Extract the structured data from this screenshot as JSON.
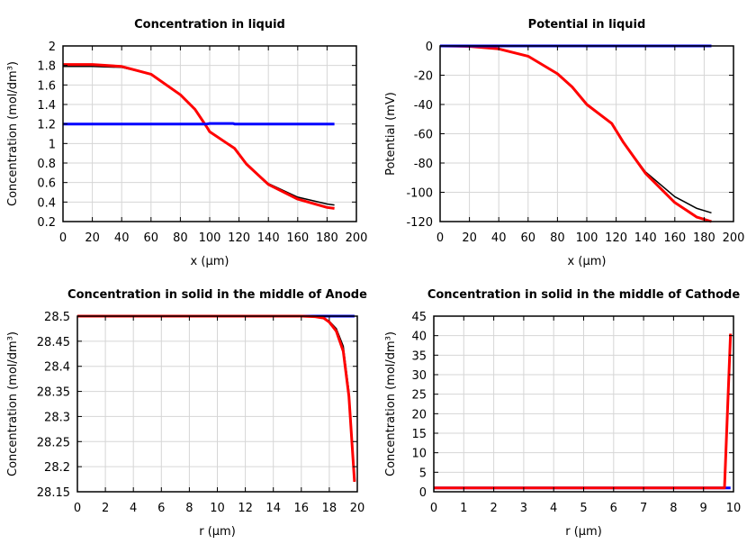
{
  "chart_data": [
    {
      "type": "line",
      "title": "Concentration in liquid",
      "xlabel": "x (µm)",
      "ylabel": "Concentration (mol/dm³)",
      "xlim": [
        0,
        200
      ],
      "ylim": [
        0.2,
        2
      ],
      "xticks": [
        0,
        20,
        40,
        60,
        80,
        100,
        120,
        140,
        160,
        180,
        200
      ],
      "yticks": [
        0.2,
        0.4,
        0.6,
        0.8,
        1,
        1.2,
        1.4,
        1.6,
        1.8,
        2
      ],
      "grid": true,
      "series": [
        {
          "color": "#000000",
          "x": [
            0,
            20,
            40,
            60,
            80,
            90,
            98,
            100,
            117,
            125,
            140,
            160,
            180,
            185
          ],
          "y": [
            1.79,
            1.79,
            1.78,
            1.71,
            1.5,
            1.35,
            1.17,
            1.12,
            0.95,
            0.79,
            0.59,
            0.45,
            0.38,
            0.37
          ]
        },
        {
          "color": "#ff0000",
          "x": [
            0,
            20,
            40,
            60,
            80,
            90,
            98,
            100,
            117,
            125,
            140,
            160,
            180,
            185
          ],
          "y": [
            1.81,
            1.81,
            1.79,
            1.71,
            1.5,
            1.35,
            1.17,
            1.12,
            0.95,
            0.79,
            0.58,
            0.43,
            0.345,
            0.335
          ]
        },
        {
          "color": "#0000ff",
          "x": [
            0,
            98,
            100,
            116,
            117,
            185
          ],
          "y": [
            1.2,
            1.2,
            1.205,
            1.205,
            1.2,
            1.2
          ]
        }
      ]
    },
    {
      "type": "line",
      "title": "Potential in liquid",
      "xlabel": "x (µm)",
      "ylabel": "Potential (mV)",
      "xlim": [
        0,
        200
      ],
      "ylim": [
        -120,
        0
      ],
      "xticks": [
        0,
        20,
        40,
        60,
        80,
        100,
        120,
        140,
        160,
        180,
        200
      ],
      "yticks": [
        -120,
        -100,
        -80,
        -60,
        -40,
        -20,
        0
      ],
      "grid": true,
      "series": [
        {
          "color": "#000000",
          "x": [
            0,
            20,
            40,
            60,
            80,
            90,
            100,
            117,
            125,
            140,
            160,
            175,
            185
          ],
          "y": [
            0,
            -0.3,
            -2,
            -7,
            -19,
            -28,
            -40,
            -53,
            -66,
            -86,
            -103,
            -111,
            -114
          ]
        },
        {
          "color": "#ff0000",
          "x": [
            0,
            20,
            40,
            60,
            80,
            90,
            100,
            117,
            125,
            140,
            160,
            175,
            185
          ],
          "y": [
            0,
            -0.3,
            -2,
            -7,
            -19,
            -28,
            -40,
            -53,
            -66,
            -87,
            -107,
            -117,
            -120
          ]
        },
        {
          "color": "#0000ff",
          "x": [
            0,
            185
          ],
          "y": [
            0,
            0
          ]
        }
      ]
    },
    {
      "type": "line",
      "title": "Concentration in solid in the middle of Anode",
      "xlabel": "r (µm)",
      "ylabel": "Concentration (mol/dm³)",
      "xlim": [
        0,
        20
      ],
      "ylim": [
        28.15,
        28.5
      ],
      "xticks": [
        0,
        2,
        4,
        6,
        8,
        10,
        12,
        14,
        16,
        18,
        20
      ],
      "yticks": [
        28.15,
        28.2,
        28.25,
        28.3,
        28.35,
        28.4,
        28.45,
        28.5
      ],
      "grid": true,
      "series": [
        {
          "color": "#0000ff",
          "x": [
            0,
            19.8
          ],
          "y": [
            28.5,
            28.5
          ]
        },
        {
          "color": "#000000",
          "x": [
            0,
            16,
            17,
            17.6,
            18,
            18.5,
            19,
            19.4,
            19.8
          ],
          "y": [
            28.5,
            28.5,
            28.499,
            28.497,
            28.49,
            28.475,
            28.44,
            28.35,
            28.17
          ]
        },
        {
          "color": "#ff0000",
          "x": [
            0,
            16,
            17,
            17.6,
            18,
            18.5,
            19,
            19.4,
            19.8
          ],
          "y": [
            28.5,
            28.5,
            28.499,
            28.496,
            28.488,
            28.47,
            28.43,
            28.34,
            28.17
          ]
        }
      ]
    },
    {
      "type": "line",
      "title": "Concentration in solid in the middle of Cathode",
      "xlabel": "r (µm)",
      "ylabel": "Concentration (mol/dm³)",
      "xlim": [
        0,
        10
      ],
      "ylim": [
        0,
        45
      ],
      "xticks": [
        0,
        1,
        2,
        3,
        4,
        5,
        6,
        7,
        8,
        9,
        10
      ],
      "yticks": [
        0,
        5,
        10,
        15,
        20,
        25,
        30,
        35,
        40,
        45
      ],
      "grid": true,
      "series": [
        {
          "color": "#0000ff",
          "x": [
            0,
            9.9
          ],
          "y": [
            1,
            1
          ]
        },
        {
          "color": "#000000",
          "x": [
            0,
            9.7,
            9.9
          ],
          "y": [
            1,
            1,
            40.5
          ]
        },
        {
          "color": "#ff0000",
          "x": [
            0,
            9.7,
            9.9
          ],
          "y": [
            1,
            1,
            40.5
          ]
        }
      ]
    }
  ]
}
